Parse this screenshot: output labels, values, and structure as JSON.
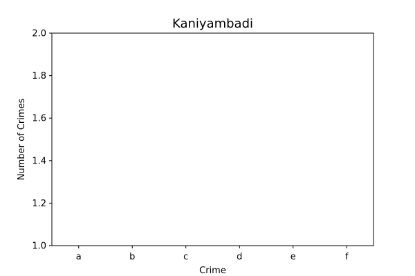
{
  "chart_data": {
    "type": "bar",
    "title": "Kaniyambadi",
    "xlabel": "Crime",
    "ylabel": "Number of Crimes",
    "categories": [
      "a",
      "b",
      "c",
      "d",
      "e",
      "f"
    ],
    "values": [
      null,
      null,
      null,
      null,
      null,
      null
    ],
    "ylim": [
      1.0,
      2.0
    ],
    "yticks": [
      "1.0",
      "1.2",
      "1.4",
      "1.6",
      "1.8",
      "2.0"
    ],
    "grid": false,
    "legend": "none"
  }
}
